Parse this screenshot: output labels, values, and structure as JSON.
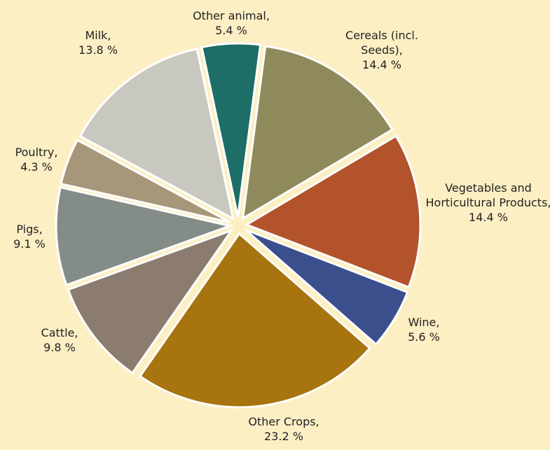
{
  "chart_data": {
    "type": "pie",
    "categories": [
      "Other animal,",
      "Cereals (incl. Seeds),",
      "Vegetables and Horticultural Products,",
      "Wine,",
      "Other Crops,",
      "Cattle,",
      "Pigs,",
      "Poultry,",
      "Milk,"
    ],
    "values": [
      5.4,
      14.4,
      14.4,
      5.6,
      23.2,
      9.8,
      9.1,
      4.3,
      13.8
    ],
    "value_labels": [
      "5.4 %",
      "14.4 %",
      "14.4 %",
      "5.6 %",
      "23.2 %",
      "9.8 %",
      "9.1 %",
      "4.3 %",
      "13.8 %"
    ],
    "colors": [
      "#1c6e66",
      "#8f8a5c",
      "#b2532c",
      "#3b4f8c",
      "#a8740f",
      "#8c7c70",
      "#848c88",
      "#a6967a",
      "#c9c8c0"
    ]
  }
}
